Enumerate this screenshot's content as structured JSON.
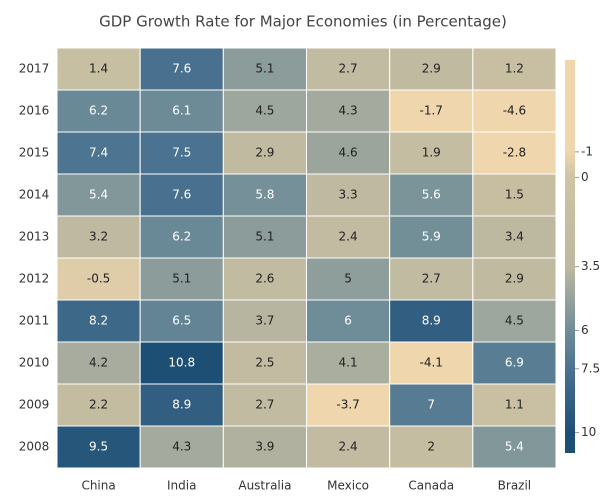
{
  "chart_data": {
    "type": "heatmap",
    "title": "GDP Growth Rate for Major Economies (in Percentage)",
    "x_categories": [
      "China",
      "India",
      "Australia",
      "Mexico",
      "Canada",
      "Brazil"
    ],
    "y_categories": [
      "2017",
      "2016",
      "2015",
      "2014",
      "2013",
      "2012",
      "2011",
      "2010",
      "2009",
      "2008"
    ],
    "values": [
      [
        1.4,
        7.6,
        5.1,
        2.7,
        2.9,
        1.2
      ],
      [
        6.2,
        6.1,
        4.5,
        4.3,
        -1.7,
        -4.6
      ],
      [
        7.4,
        7.5,
        2.9,
        4.6,
        1.9,
        -2.8
      ],
      [
        5.4,
        7.6,
        5.8,
        3.3,
        5.6,
        1.5
      ],
      [
        3.2,
        6.2,
        5.1,
        2.4,
        5.9,
        3.4
      ],
      [
        -0.5,
        5.1,
        2.6,
        5,
        2.7,
        2.9
      ],
      [
        8.2,
        6.5,
        3.7,
        6,
        8.9,
        4.5
      ],
      [
        4.2,
        10.8,
        2.5,
        4.1,
        -4.1,
        6.9
      ],
      [
        2.2,
        8.9,
        2.7,
        -3.7,
        7,
        1.1
      ],
      [
        9.5,
        4.3,
        3.9,
        2.4,
        2,
        5.4
      ]
    ],
    "legend_lim": [
      -4.6,
      10.8
    ],
    "legend_ticks": [
      -1,
      0,
      3.5,
      6,
      7.5,
      10
    ],
    "legend_colors": [
      "#F0D6AD",
      "#CEC3A4",
      "#BDB8A0",
      "#6F8D98",
      "#4B7290",
      "#1D4F75"
    ]
  }
}
